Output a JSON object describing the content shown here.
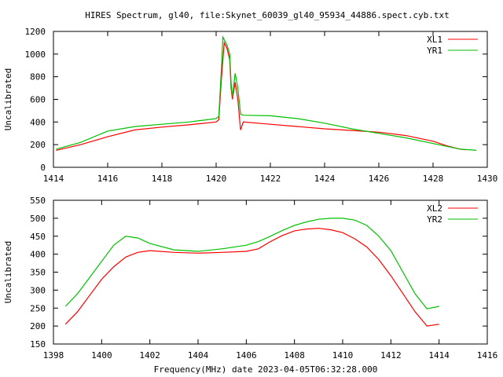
{
  "chart_data": {
    "title": "HIRES Spectrum, gl40, file:Skynet_60039_gl40_95934_44886.spect.cyb.txt",
    "xlabel": "Frequency(MHz) date 2023-04-05T06:32:28.000",
    "panels": [
      {
        "type": "line",
        "ylabel": "Uncalibrated",
        "xlim": [
          1414,
          1430
        ],
        "ylim": [
          0,
          1200
        ],
        "xticks": [
          1414,
          1416,
          1418,
          1420,
          1422,
          1424,
          1426,
          1428,
          1430
        ],
        "yticks": [
          0,
          200,
          400,
          600,
          800,
          1000,
          1200
        ],
        "legend_position": "top-right",
        "series": [
          {
            "name": "XL1",
            "color": "#ff0000",
            "x": [
              1414.1,
              1415,
              1416,
              1417,
              1418,
              1419,
              1420,
              1420.1,
              1420.2,
              1420.3,
              1420.4,
              1420.5,
              1420.55,
              1420.6,
              1420.7,
              1420.8,
              1420.9,
              1421,
              1422,
              1423,
              1424,
              1425,
              1426,
              1427,
              1428,
              1428.5,
              1429,
              1429.2
            ],
            "y": [
              150,
              200,
              270,
              330,
              355,
              375,
              400,
              420,
              800,
              1100,
              1050,
              950,
              700,
              600,
              750,
              600,
              330,
              400,
              380,
              360,
              340,
              325,
              310,
              280,
              230,
              190,
              160,
              155
            ]
          },
          {
            "name": "YR1",
            "color": "#00c000",
            "x": [
              1414.1,
              1415,
              1416,
              1417,
              1418,
              1419,
              1420,
              1420.1,
              1420.2,
              1420.25,
              1420.4,
              1420.5,
              1420.55,
              1420.6,
              1420.7,
              1420.8,
              1420.9,
              1421,
              1422,
              1423,
              1424,
              1425,
              1426,
              1427,
              1428,
              1429,
              1429.6
            ],
            "y": [
              160,
              220,
              320,
              360,
              380,
              400,
              430,
              450,
              900,
              1150,
              1080,
              1000,
              750,
              620,
              830,
              700,
              470,
              460,
              455,
              430,
              390,
              340,
              300,
              260,
              210,
              160,
              150
            ]
          }
        ]
      },
      {
        "type": "line",
        "ylabel": "Uncalibrated",
        "xlim": [
          1398,
          1416
        ],
        "ylim": [
          150,
          550
        ],
        "xticks": [
          1398,
          1400,
          1402,
          1404,
          1406,
          1408,
          1410,
          1412,
          1414,
          1416
        ],
        "yticks": [
          150,
          200,
          250,
          300,
          350,
          400,
          450,
          500,
          550
        ],
        "legend_position": "top-right",
        "series": [
          {
            "name": "XL2",
            "color": "#ff0000",
            "x": [
              1398.5,
              1399,
              1399.5,
              1400,
              1400.5,
              1401,
              1401.5,
              1402,
              1403,
              1404,
              1405,
              1406,
              1406.5,
              1407,
              1407.5,
              1408,
              1408.5,
              1409,
              1409.5,
              1410,
              1410.5,
              1411,
              1411.5,
              1412,
              1412.5,
              1413,
              1413.5,
              1414
            ],
            "y": [
              205,
              240,
              285,
              330,
              365,
              392,
              405,
              410,
              405,
              403,
              405,
              408,
              415,
              435,
              452,
              465,
              470,
              472,
              468,
              460,
              443,
              420,
              385,
              340,
              290,
              240,
              200,
              205
            ]
          },
          {
            "name": "YR2",
            "color": "#00c000",
            "x": [
              1398.5,
              1399,
              1399.5,
              1400,
              1400.5,
              1401,
              1401.5,
              1402,
              1403,
              1404,
              1405,
              1406,
              1406.5,
              1407,
              1407.5,
              1408,
              1408.5,
              1409,
              1409.5,
              1410,
              1410.5,
              1411,
              1411.5,
              1412,
              1412.5,
              1413,
              1413.5,
              1414
            ],
            "y": [
              255,
              290,
              335,
              380,
              425,
              450,
              445,
              430,
              412,
              408,
              415,
              425,
              435,
              450,
              466,
              480,
              490,
              497,
              500,
              500,
              495,
              480,
              450,
              410,
              350,
              290,
              248,
              255
            ]
          }
        ]
      }
    ]
  }
}
